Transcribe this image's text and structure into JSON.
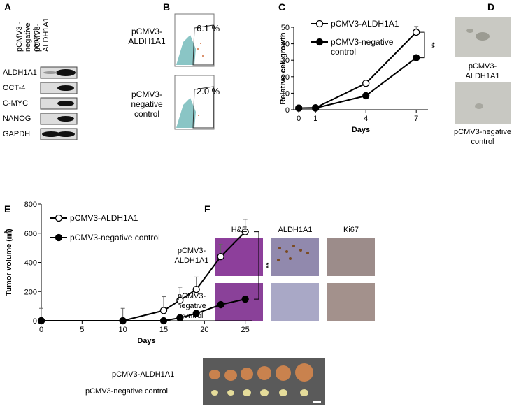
{
  "panel_letters": [
    "A",
    "B",
    "C",
    "D",
    "E",
    "F"
  ],
  "blot": {
    "columns": [
      "pCMV3 -negative control",
      "pCMV3- ALDH1A1"
    ],
    "rows": [
      "ALDH1A1",
      "OCT-4",
      "C-MYC",
      "NANOG",
      "GAPDH"
    ]
  },
  "flow": {
    "rows": [
      {
        "label": "pCMV3- ALDH1A1",
        "percent": "6.1 %"
      },
      {
        "label": "pCMV3- negative control",
        "percent": "2.0 %"
      }
    ]
  },
  "microscopy": {
    "labels": [
      "pCMV3- ALDH1A1",
      "pCMV3-negative control"
    ]
  },
  "tumor_photo": {
    "labels": [
      "pCMV3-ALDH1A1",
      "pCMV3-negative control"
    ]
  },
  "ihc": {
    "columns": [
      "H&E",
      "ALDH1A1",
      "Ki67"
    ],
    "rows": [
      "pCMV3- ALDH1A1",
      "pCMV3- negative control"
    ]
  },
  "chart_data": [
    {
      "type": "line",
      "x_label": "Days",
      "y_label": "Relative cell growth",
      "annotation": "**",
      "legend": "upper left",
      "x": [
        0,
        1,
        4,
        7
      ],
      "xlim": [
        -0.3,
        7.7
      ],
      "xticks": [
        0,
        1,
        4,
        7
      ],
      "ylim": [
        0,
        50
      ],
      "yticks": [
        0,
        10,
        20,
        30,
        40,
        50
      ],
      "series": [
        {
          "name": "pCMV3-ALDH1A1",
          "color": "#000000",
          "marker_style": "open",
          "values": [
            1,
            1.2,
            16,
            47
          ],
          "errors": [
            0.3,
            0.3,
            0.8,
            3.5
          ]
        },
        {
          "name": "pCMV3-negative control",
          "color": "#000000",
          "marker_style": "filled",
          "values": [
            1,
            1,
            8.5,
            31.5
          ],
          "errors": [
            0.2,
            0.2,
            0.5,
            0.8
          ]
        }
      ]
    },
    {
      "type": "line",
      "x_label": "Days",
      "y_label": "Tumor volume (㎣)",
      "annotation": "**",
      "legend": "upper left",
      "x": [
        0,
        10,
        15,
        17,
        19,
        22,
        25
      ],
      "xlim": [
        0,
        25.8
      ],
      "xticks": [
        0,
        5,
        10,
        15,
        20,
        25
      ],
      "ylim": [
        0,
        800
      ],
      "yticks": [
        0,
        200,
        400,
        600,
        800
      ],
      "series": [
        {
          "name": "pCMV3-ALDH1A1",
          "color": "#000000",
          "marker_style": "open",
          "values": [
            0,
            0,
            70,
            140,
            215,
            440,
            610
          ],
          "errors": [
            85,
            85,
            95,
            90,
            85,
            85,
            85
          ]
        },
        {
          "name": "pCMV3-negative control",
          "color": "#000000",
          "marker_style": "filled",
          "values": [
            0,
            0,
            0,
            20,
            50,
            110,
            148
          ],
          "errors": [
            0,
            0,
            0,
            5,
            10,
            15,
            15
          ]
        }
      ]
    }
  ]
}
